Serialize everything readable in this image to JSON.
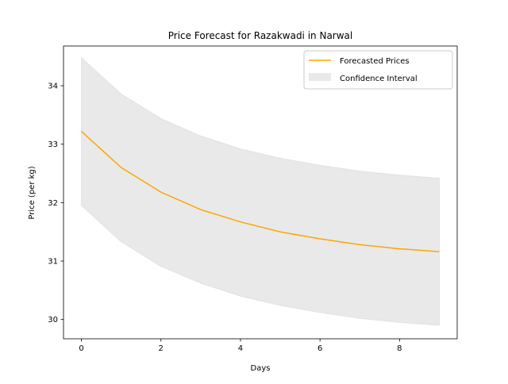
{
  "chart_data": {
    "type": "line",
    "title": "Price Forecast for Razakwadi in Narwal",
    "xlabel": "Days",
    "ylabel": "Price (per kg)",
    "xlim": [
      -0.45,
      9.45
    ],
    "ylim": [
      29.67,
      34.68
    ],
    "xticks": [
      0,
      2,
      4,
      6,
      8
    ],
    "yticks": [
      30,
      31,
      32,
      33,
      34
    ],
    "grid": false,
    "legend_position": "top-right",
    "x": [
      0,
      1,
      2,
      3,
      4,
      5,
      6,
      7,
      8,
      9
    ],
    "series": [
      {
        "name": "Forecasted Prices",
        "kind": "line",
        "color": "#ffa500",
        "values": [
          33.22,
          32.6,
          32.18,
          31.88,
          31.67,
          31.5,
          31.38,
          31.28,
          31.21,
          31.16
        ]
      },
      {
        "name": "Confidence Interval",
        "kind": "band",
        "color": "#d3d3d3",
        "lower": [
          31.95,
          31.33,
          30.91,
          30.62,
          30.4,
          30.24,
          30.12,
          30.02,
          29.95,
          29.9
        ],
        "upper": [
          34.48,
          33.86,
          33.44,
          33.14,
          32.92,
          32.76,
          32.64,
          32.54,
          32.47,
          32.42
        ]
      }
    ]
  }
}
